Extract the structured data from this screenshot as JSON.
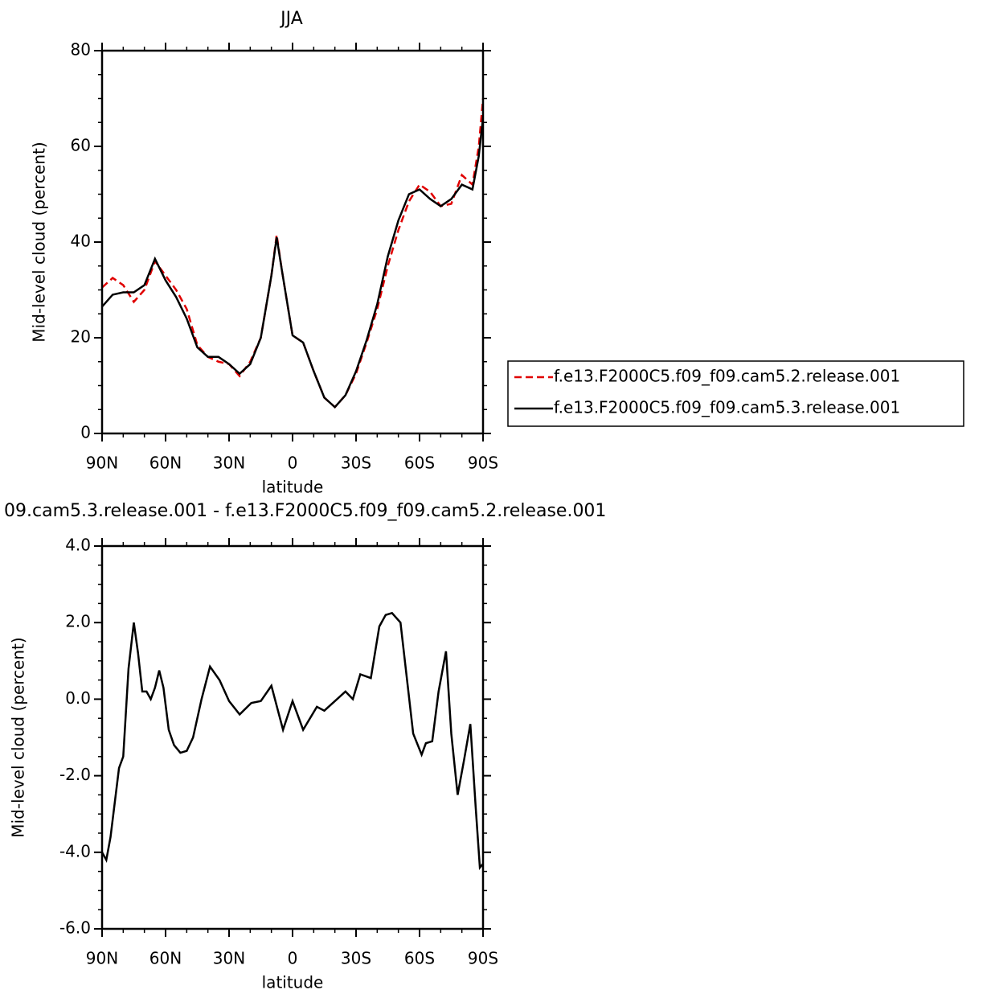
{
  "chart_data": [
    {
      "type": "line",
      "title": "JJA",
      "xlabel": "latitude",
      "ylabel": "Mid-level cloud (percent)",
      "xlim": [
        90,
        -90
      ],
      "ylim": [
        0,
        80
      ],
      "xticks": [
        {
          "value": 90,
          "label": "90N"
        },
        {
          "value": 60,
          "label": "60N"
        },
        {
          "value": 30,
          "label": "30N"
        },
        0,
        {
          "value": -30,
          "label": "30S"
        },
        {
          "value": -60,
          "label": "60S"
        },
        {
          "value": -90,
          "label": "90S"
        }
      ],
      "yticks": [
        0,
        20,
        40,
        60,
        80
      ],
      "yminor": [
        5,
        10,
        15,
        25,
        30,
        35,
        45,
        50,
        55,
        65,
        70,
        75
      ],
      "xminor": [
        80,
        70,
        50,
        40,
        20,
        10,
        -10,
        -20,
        -40,
        -50,
        -70,
        -80
      ],
      "legend": "right",
      "x": [
        90,
        85,
        80,
        75,
        70,
        65,
        60,
        55,
        50,
        45,
        40,
        35,
        30,
        25,
        20,
        15,
        10,
        7.5,
        5,
        0,
        -5,
        -10,
        -15,
        -20,
        -25,
        -30,
        -35,
        -40,
        -45,
        -50,
        -55,
        -60,
        -65,
        -70,
        -75,
        -80,
        -85,
        -88,
        -90
      ],
      "series": [
        {
          "name": "f.e13.F2000C5.f09_f09.cam5.2.release.001",
          "color": "#e00000",
          "style": "dashed",
          "values": [
            30.5,
            32.5,
            31,
            27.5,
            30,
            36,
            33,
            30,
            26,
            18.5,
            16,
            15,
            14.5,
            12,
            15,
            20,
            33,
            41.5,
            34,
            20.5,
            19,
            13,
            7.5,
            5.5,
            8,
            12.5,
            19,
            26,
            35,
            42.5,
            48.5,
            52,
            50.5,
            47.5,
            48,
            54,
            52,
            60,
            70
          ]
        },
        {
          "name": "f.e13.F2000C5.f09_f09.cam5.3.release.001",
          "color": "#000000",
          "style": "solid",
          "values": [
            26.5,
            29,
            29.5,
            29.5,
            31,
            36.5,
            32,
            28.5,
            24,
            18,
            16,
            16,
            14.5,
            12.5,
            14.5,
            20,
            33,
            41,
            34,
            20.5,
            19,
            13,
            7.5,
            5.5,
            8,
            13,
            19.5,
            27,
            37,
            44.5,
            50,
            51,
            49,
            47.5,
            49,
            52,
            51,
            58,
            66
          ]
        }
      ]
    },
    {
      "type": "line",
      "title": "09.cam5.3.release.001  -  f.e13.F2000C5.f09_f09.cam5.2.release.001",
      "xlabel": "latitude",
      "ylabel": "Mid-level cloud (percent)",
      "xlim": [
        90,
        -90
      ],
      "ylim": [
        -6,
        4
      ],
      "xticks": [
        {
          "value": 90,
          "label": "90N"
        },
        {
          "value": 60,
          "label": "60N"
        },
        {
          "value": 30,
          "label": "30N"
        },
        0,
        {
          "value": -30,
          "label": "30S"
        },
        {
          "value": -60,
          "label": "60S"
        },
        {
          "value": -90,
          "label": "90S"
        }
      ],
      "yticks": [
        {
          "value": 4,
          "label": "4.0"
        },
        {
          "value": 2,
          "label": "2.0"
        },
        {
          "value": 0,
          "label": "0.0"
        },
        {
          "value": -2,
          "label": "-2.0"
        },
        {
          "value": -4,
          "label": "-4.0"
        },
        {
          "value": -6,
          "label": "-6.0"
        }
      ],
      "yminor": [
        3.5,
        3,
        2.5,
        1.5,
        1,
        0.5,
        -0.5,
        -1,
        -1.5,
        -2.5,
        -3,
        -3.5,
        -4.5,
        -5,
        -5.5
      ],
      "xminor": [
        80,
        70,
        50,
        40,
        20,
        10,
        -10,
        -20,
        -40,
        -50,
        -70,
        -80
      ],
      "x": [
        90,
        88,
        86,
        82,
        80,
        77.5,
        75,
        73,
        71,
        69,
        67,
        65,
        63,
        61,
        58.5,
        56,
        53,
        50,
        47,
        43,
        39,
        34.5,
        30,
        25,
        19.5,
        15,
        10,
        4.5,
        0,
        -5,
        -11.5,
        -15,
        -21,
        -25,
        -28.5,
        -32,
        -37,
        -41,
        -44,
        -47,
        -51,
        -57,
        -61,
        -63,
        -66,
        -69,
        -72.5,
        -75,
        -78,
        -81,
        -84,
        -86.5,
        -88.5,
        -90
      ],
      "series": [
        {
          "color": "#000000",
          "style": "solid",
          "values": [
            -4.0,
            -4.2,
            -3.6,
            -1.8,
            -1.5,
            0.8,
            2.0,
            1.2,
            0.2,
            0.2,
            0.0,
            0.3,
            0.75,
            0.3,
            -0.8,
            -1.2,
            -1.4,
            -1.35,
            -1.0,
            0.0,
            0.85,
            0.5,
            -0.05,
            -0.4,
            -0.1,
            -0.05,
            0.35,
            -0.8,
            -0.05,
            -0.8,
            -0.2,
            -0.3,
            0.0,
            0.2,
            0.0,
            0.65,
            0.55,
            1.9,
            2.2,
            2.25,
            2.0,
            -0.9,
            -1.45,
            -1.15,
            -1.1,
            0.2,
            1.25,
            -0.9,
            -2.5,
            -1.6,
            -0.65,
            -2.8,
            -4.4,
            -4.3
          ]
        }
      ]
    }
  ]
}
